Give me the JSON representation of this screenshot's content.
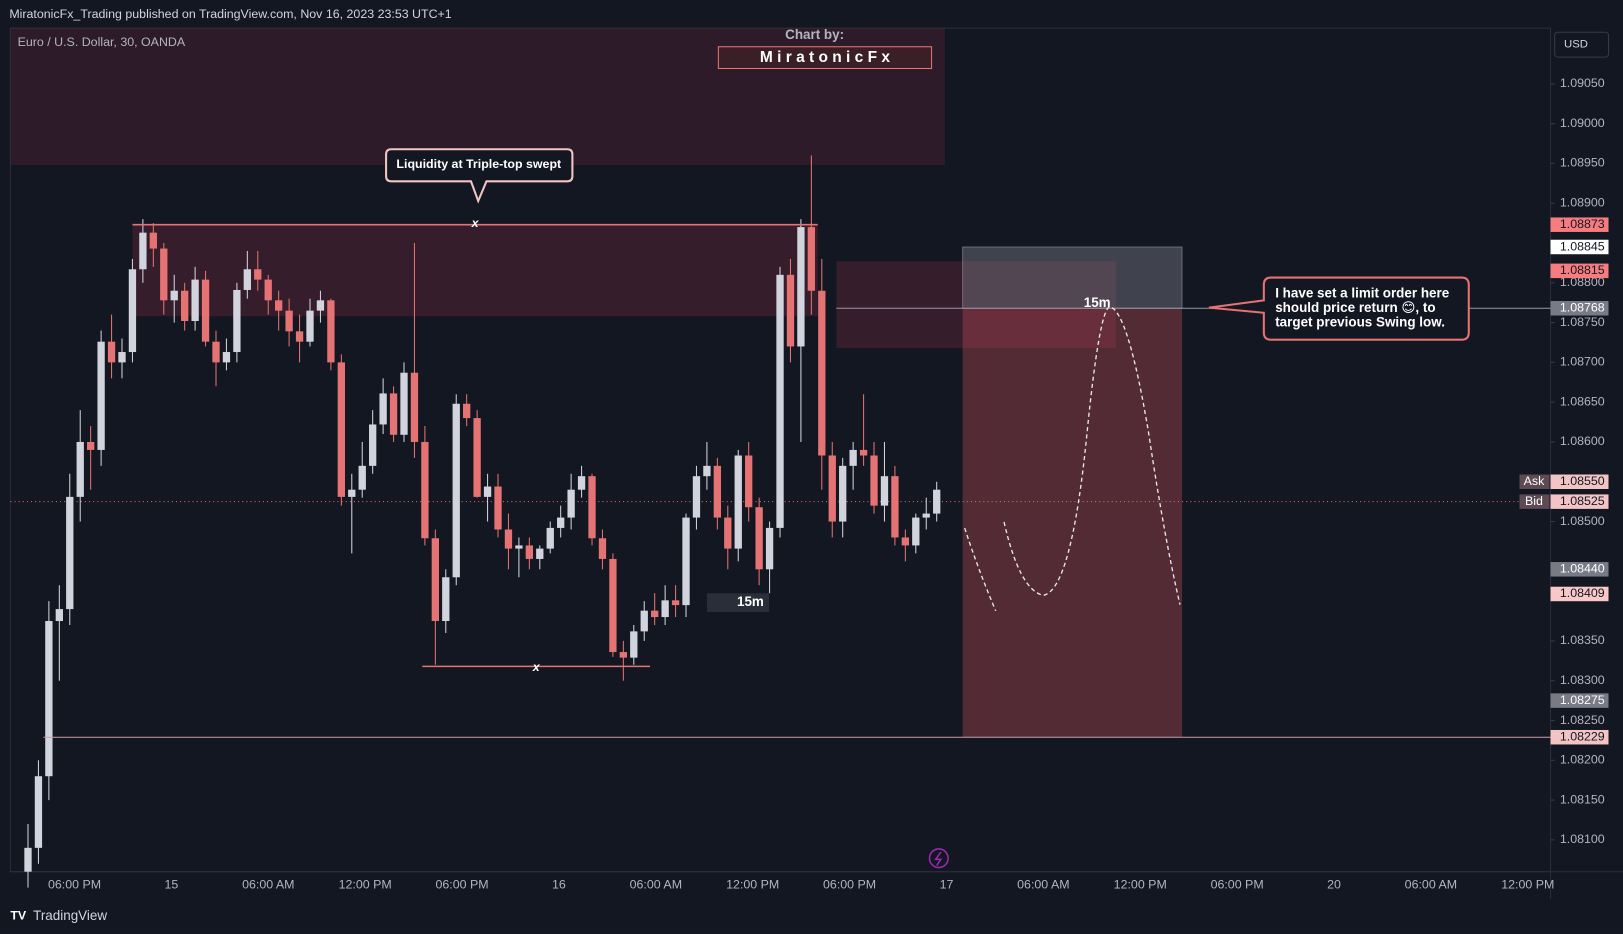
{
  "chart_data": {
    "type": "candlestick",
    "header": "MiratonicFx_Trading published on TradingView.com, Nov 16, 2023 23:53 UTC+1",
    "symbol": "Euro / U.S. Dollar, 30, OANDA",
    "credit_label": "Chart by:",
    "credit_name": "M i r a t o n i c F x",
    "currency": "USD",
    "brand": "TradingView",
    "callout_top": "Liquidity at Triple-top swept",
    "callout_note": [
      "I have set a limit order here",
      "should price return 😊, to",
      "target previous Swing low."
    ],
    "marker_15m": [
      "15m",
      "15m"
    ],
    "marker_x": [
      "x",
      "x"
    ],
    "ylim": [
      1.0806,
      1.0912
    ],
    "yticks": [
      {
        "value": 1.0905,
        "label": "1.09050"
      },
      {
        "value": 1.09,
        "label": "1.09000"
      },
      {
        "value": 1.0895,
        "label": "1.08950"
      },
      {
        "value": 1.089,
        "label": "1.08900"
      },
      {
        "value": 1.088,
        "label": "1.08800"
      },
      {
        "value": 1.0875,
        "label": "1.08750"
      },
      {
        "value": 1.087,
        "label": "1.08700"
      },
      {
        "value": 1.0865,
        "label": "1.08650"
      },
      {
        "value": 1.086,
        "label": "1.08600"
      },
      {
        "value": 1.085,
        "label": "1.08500"
      },
      {
        "value": 1.0835,
        "label": "1.08350"
      },
      {
        "value": 1.083,
        "label": "1.08300"
      },
      {
        "value": 1.0825,
        "label": "1.08250"
      },
      {
        "value": 1.082,
        "label": "1.08200"
      },
      {
        "value": 1.0815,
        "label": "1.08150"
      },
      {
        "value": 1.081,
        "label": "1.08100"
      }
    ],
    "xticks": [
      "06:00 PM",
      "15",
      "06:00 AM",
      "12:00 PM",
      "06:00 PM",
      "16",
      "06:00 AM",
      "12:00 PM",
      "06:00 PM",
      "17",
      "06:00 AM",
      "12:00 PM",
      "06:00 PM",
      "20",
      "06:00 AM",
      "12:00 PM"
    ],
    "up_color": "#d1d4dc",
    "down_color": "#e57373",
    "price_labels": [
      {
        "value": 1.08873,
        "label": "1.08873",
        "color": "#f77c80"
      },
      {
        "value": 1.08845,
        "label": "1.08845",
        "color": "#ffffff"
      },
      {
        "value": 1.08815,
        "label": "1.08815",
        "color": "#f77c80"
      },
      {
        "value": 1.08768,
        "label": "1.08768",
        "color": "#787b86"
      },
      {
        "value": 1.0855,
        "label": "1.08550",
        "color": "#f2c4c4",
        "tag": "Ask"
      },
      {
        "value": 1.08525,
        "label": "1.08525",
        "color": "#f2c4c4",
        "tag": "Bid"
      },
      {
        "value": 1.0844,
        "label": "1.08440",
        "color": "#787b86"
      },
      {
        "value": 1.08409,
        "label": "1.08409",
        "color": "#f8c8c8"
      },
      {
        "value": 1.08275,
        "label": "1.08275",
        "color": "#787b86"
      },
      {
        "value": 1.08229,
        "label": "1.08229",
        "color": "#f2c4c4"
      }
    ],
    "levels": {
      "triple_top": 1.08873,
      "swing_low": 1.08318,
      "target_line": 1.08229
    },
    "zones": [
      {
        "top": 1.0912,
        "bottom": 1.08948
      },
      {
        "top": 1.08873,
        "bottom": 1.08758
      },
      {
        "top": 1.08827,
        "bottom": 1.08718
      }
    ],
    "position": {
      "stop": 1.08845,
      "entry": 1.08768,
      "target": 1.08229
    },
    "candles": [
      [
        1.0806,
        1.0812,
        1.0804,
        1.0809
      ],
      [
        1.0809,
        1.082,
        1.0807,
        1.0818
      ],
      [
        1.0818,
        1.084,
        1.0815,
        1.08375
      ],
      [
        1.08375,
        1.0842,
        1.083,
        1.0839
      ],
      [
        1.0839,
        1.0856,
        1.0837,
        1.08531
      ],
      [
        1.08531,
        1.0864,
        1.085,
        1.086
      ],
      [
        1.086,
        1.0862,
        1.0854,
        1.0859
      ],
      [
        1.0859,
        1.0874,
        1.0857,
        1.08726
      ],
      [
        1.08726,
        1.0876,
        1.0868,
        1.087
      ],
      [
        1.087,
        1.0873,
        1.0868,
        1.08713
      ],
      [
        1.08713,
        1.0883,
        1.087,
        1.08817
      ],
      [
        1.08817,
        1.0888,
        1.088,
        1.08863
      ],
      [
        1.08863,
        1.08875,
        1.0882,
        1.08843
      ],
      [
        1.08843,
        1.0885,
        1.0876,
        1.08778
      ],
      [
        1.08778,
        1.0881,
        1.0875,
        1.0879
      ],
      [
        1.0879,
        1.088,
        1.0874,
        1.08752
      ],
      [
        1.08752,
        1.0882,
        1.0874,
        1.08804
      ],
      [
        1.08804,
        1.08815,
        1.0872,
        1.08726
      ],
      [
        1.08726,
        1.0874,
        1.0867,
        1.087
      ],
      [
        1.087,
        1.0873,
        1.0869,
        1.08713
      ],
      [
        1.08713,
        1.088,
        1.087,
        1.08791
      ],
      [
        1.08791,
        1.0884,
        1.0878,
        1.08817
      ],
      [
        1.08817,
        1.0884,
        1.0879,
        1.08804
      ],
      [
        1.08804,
        1.0881,
        1.0876,
        1.08778
      ],
      [
        1.08778,
        1.0879,
        1.0874,
        1.08765
      ],
      [
        1.08765,
        1.0878,
        1.0872,
        1.08739
      ],
      [
        1.08739,
        1.0876,
        1.087,
        1.08726
      ],
      [
        1.08726,
        1.0878,
        1.0872,
        1.08765
      ],
      [
        1.08765,
        1.0879,
        1.0875,
        1.08778
      ],
      [
        1.08778,
        1.0878,
        1.0869,
        1.087
      ],
      [
        1.087,
        1.0871,
        1.0852,
        1.08531
      ],
      [
        1.08531,
        1.0856,
        1.0846,
        1.0854
      ],
      [
        1.0854,
        1.086,
        1.0853,
        1.0857
      ],
      [
        1.0857,
        1.0864,
        1.0856,
        1.08622
      ],
      [
        1.08622,
        1.0868,
        1.0861,
        1.08661
      ],
      [
        1.08661,
        1.0867,
        1.086,
        1.08609
      ],
      [
        1.08609,
        1.087,
        1.086,
        1.08687
      ],
      [
        1.08687,
        1.0885,
        1.0858,
        1.086
      ],
      [
        1.086,
        1.0862,
        1.0847,
        1.08479
      ],
      [
        1.08479,
        1.0849,
        1.0832,
        1.08375
      ],
      [
        1.08375,
        1.0844,
        1.0836,
        1.0843
      ],
      [
        1.0843,
        1.0866,
        1.0842,
        1.08648
      ],
      [
        1.08648,
        1.0866,
        1.0862,
        1.0863
      ],
      [
        1.0863,
        1.0864,
        1.0853,
        1.08531
      ],
      [
        1.08531,
        1.0856,
        1.085,
        1.08544
      ],
      [
        1.08544,
        1.0856,
        1.0848,
        1.0849
      ],
      [
        1.0849,
        1.0851,
        1.0844,
        1.08466
      ],
      [
        1.08466,
        1.0848,
        1.0843,
        1.0847
      ],
      [
        1.0847,
        1.0848,
        1.0844,
        1.08453
      ],
      [
        1.08453,
        1.0847,
        1.0844,
        1.08466
      ],
      [
        1.08466,
        1.085,
        1.0846,
        1.08492
      ],
      [
        1.08492,
        1.0852,
        1.0848,
        1.08505
      ],
      [
        1.08505,
        1.0856,
        1.0849,
        1.0854
      ],
      [
        1.0854,
        1.0857,
        1.0853,
        1.08557
      ],
      [
        1.08557,
        1.0856,
        1.0847,
        1.08479
      ],
      [
        1.08479,
        1.0849,
        1.0844,
        1.08453
      ],
      [
        1.08453,
        1.0846,
        1.0833,
        1.08336
      ],
      [
        1.08336,
        1.0835,
        1.083,
        1.08329
      ],
      [
        1.08329,
        1.0837,
        1.0832,
        1.08362
      ],
      [
        1.08362,
        1.084,
        1.0835,
        1.08388
      ],
      [
        1.08388,
        1.0841,
        1.0837,
        1.0838
      ],
      [
        1.0838,
        1.0842,
        1.0837,
        1.08401
      ],
      [
        1.08401,
        1.0842,
        1.0838,
        1.08395
      ],
      [
        1.08395,
        1.0851,
        1.0838,
        1.08505
      ],
      [
        1.08505,
        1.0857,
        1.0849,
        1.08557
      ],
      [
        1.08557,
        1.086,
        1.0854,
        1.0857
      ],
      [
        1.0857,
        1.0858,
        1.0849,
        1.08505
      ],
      [
        1.08505,
        1.0852,
        1.0844,
        1.08466
      ],
      [
        1.08466,
        1.0859,
        1.0845,
        1.08583
      ],
      [
        1.08583,
        1.086,
        1.085,
        1.08518
      ],
      [
        1.08518,
        1.0853,
        1.0842,
        1.0844
      ],
      [
        1.0844,
        1.085,
        1.0841,
        1.08492
      ],
      [
        1.08492,
        1.0882,
        1.0848,
        1.0881
      ],
      [
        1.0881,
        1.0883,
        1.087,
        1.0872
      ],
      [
        1.0872,
        1.0888,
        1.086,
        1.0887
      ],
      [
        1.0887,
        1.0896,
        1.0876,
        1.0879
      ],
      [
        1.0879,
        1.0883,
        1.0854,
        1.08583
      ],
      [
        1.08583,
        1.086,
        1.0848,
        1.085
      ],
      [
        1.085,
        1.0858,
        1.0848,
        1.0857
      ],
      [
        1.0857,
        1.086,
        1.0854,
        1.0859
      ],
      [
        1.0859,
        1.0866,
        1.0857,
        1.08583
      ],
      [
        1.08583,
        1.086,
        1.0851,
        1.0852
      ],
      [
        1.0852,
        1.086,
        1.085,
        1.08557
      ],
      [
        1.08557,
        1.0857,
        1.0847,
        1.0848
      ],
      [
        1.0848,
        1.0849,
        1.0845,
        1.0847
      ],
      [
        1.0847,
        1.0851,
        1.0846,
        1.08505
      ],
      [
        1.08505,
        1.0853,
        1.0849,
        1.0851
      ],
      [
        1.0851,
        1.0855,
        1.085,
        1.0854
      ]
    ]
  }
}
